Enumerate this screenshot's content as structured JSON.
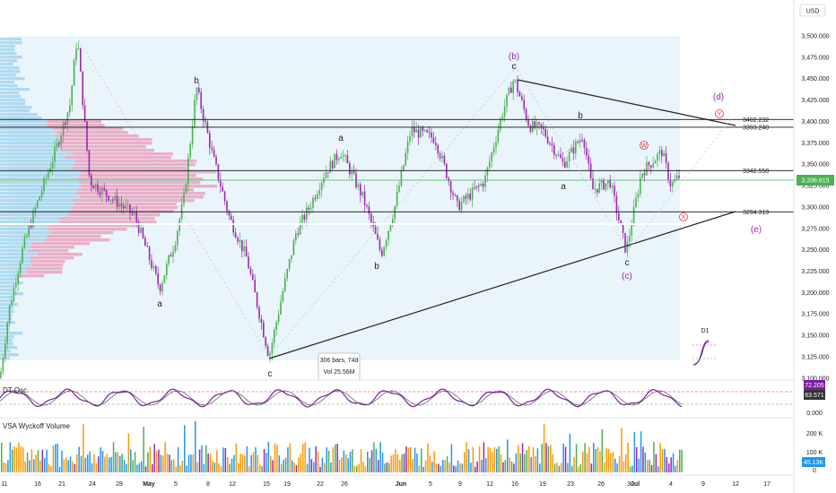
{
  "currency": "USD",
  "price_axis": {
    "ticks": [
      "3,500.000",
      "3,475.000",
      "3,450.000",
      "3,425.000",
      "3,400.000",
      "3,375.000",
      "3,350.000",
      "3,325.000",
      "3,300.000",
      "3,275.000",
      "3,250.000",
      "3,225.000",
      "3,200.000",
      "3,175.000",
      "3,150.000",
      "3,125.000",
      "3,100.000"
    ],
    "last_price": "3,336.615"
  },
  "levels": [
    {
      "label": "3402.232",
      "value": 3402.232
    },
    {
      "label": "3393.240",
      "value": 3393.24
    },
    {
      "label": "3342.558",
      "value": 3342.558
    },
    {
      "label": "3294.319",
      "value": 3294.319
    }
  ],
  "time_axis": [
    "11",
    "16",
    "21",
    "24",
    "28",
    "May",
    "5",
    "8",
    "12",
    "15",
    "19",
    "22",
    "26",
    "Jun",
    "5",
    "9",
    "12",
    "16",
    "19",
    "23",
    "26",
    "30",
    "Jul",
    "4",
    "9",
    "12",
    "17",
    "21"
  ],
  "wave_labels": {
    "b_top": "b",
    "a_low": "a",
    "c_low": "c",
    "a_mid": "a",
    "b_mid": "b",
    "b_paren": "(b)",
    "c_top": "c",
    "b_right": "b",
    "a_right": "a",
    "c_right": "c",
    "c_paren": "(c)",
    "d_paren": "(d)",
    "e_paren": "(e)",
    "circle_y": "Y",
    "circle_w": "W",
    "circle_x": "X"
  },
  "measure_tooltip": {
    "line1": "306 bars, 74d",
    "line2": "Vol 25.56M"
  },
  "inset_label": "D1",
  "oscillator": {
    "title": "DT-Osc",
    "ticks": [
      "0.000"
    ],
    "value_1": "72.205",
    "value_2": "63.571"
  },
  "volume": {
    "title": "VSA Wyckoff Volume",
    "ticks": [
      "200 K",
      "100 K",
      "0"
    ],
    "value": "45.13K"
  },
  "colors": {
    "up": "#4caf50",
    "down": "#9c27b0",
    "profile_blue": "#a9d7ee",
    "profile_pink": "#e9a3c0",
    "wave": "#9c27b0",
    "resistance": "#000000",
    "last_price": "#4caf50"
  },
  "chart_data": {
    "type": "candlestick",
    "y_axis": {
      "unit": "USD",
      "ylim": [
        3100,
        3505
      ]
    },
    "x_axis": {
      "start": "Apr 11",
      "end": "Jul 21"
    },
    "key_points": [
      {
        "date": "Apr 22",
        "price": 3500
      },
      {
        "date": "Apr 24",
        "price": 3330
      },
      {
        "date": "Apr 30",
        "price": 3200
      },
      {
        "date": "May 6",
        "price": 3440
      },
      {
        "date": "May 15",
        "price": 3120
      },
      {
        "date": "May 23",
        "price": 3365
      },
      {
        "date": "May 29",
        "price": 3245
      },
      {
        "date": "Jun 4",
        "price": 3390
      },
      {
        "date": "Jun 9",
        "price": 3295
      },
      {
        "date": "Jun 16",
        "price": 3452
      },
      {
        "date": "Jun 23",
        "price": 3345
      },
      {
        "date": "Jun 30",
        "price": 3248
      },
      {
        "date": "Jul 3",
        "price": 3365
      },
      {
        "date": "Jul 7",
        "price": 3336.6
      }
    ]
  }
}
